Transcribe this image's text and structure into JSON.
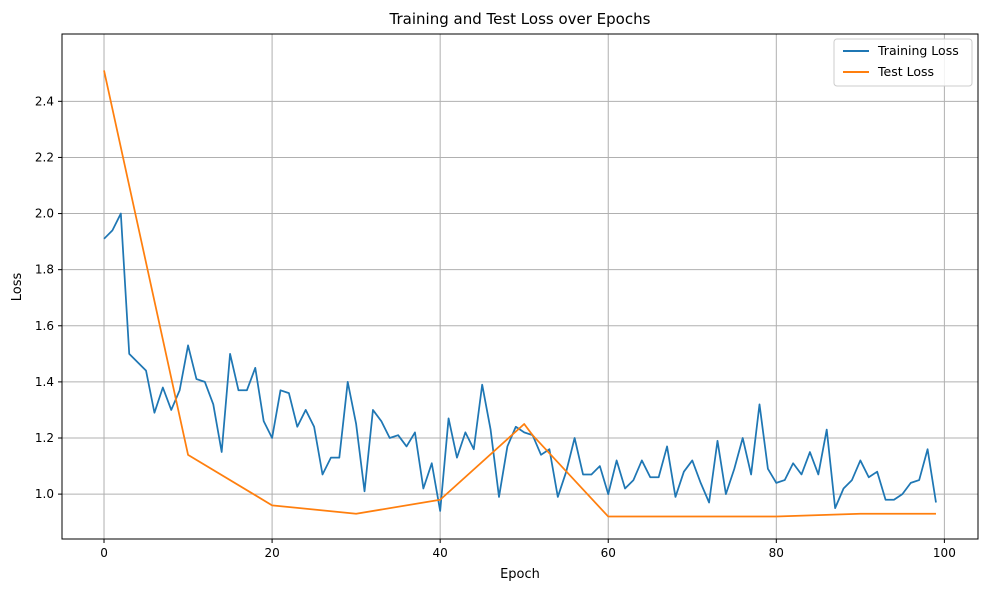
{
  "chart_data": {
    "type": "line",
    "title": "Training and Test Loss over Epochs",
    "xlabel": "Epoch",
    "ylabel": "Loss",
    "xlim": [
      -5,
      104
    ],
    "ylim": [
      0.84,
      2.64
    ],
    "xticks": [
      0,
      20,
      40,
      60,
      80,
      100
    ],
    "yticks": [
      1.0,
      1.2,
      1.4,
      1.6,
      1.8,
      2.0,
      2.2,
      2.4
    ],
    "grid": true,
    "legend": "top-right",
    "series": [
      {
        "name": "Training Loss",
        "color": "#1f77b4",
        "x": [
          0,
          1,
          2,
          3,
          4,
          5,
          6,
          7,
          8,
          9,
          10,
          11,
          12,
          13,
          14,
          15,
          16,
          17,
          18,
          19,
          20,
          21,
          22,
          23,
          24,
          25,
          26,
          27,
          28,
          29,
          30,
          31,
          32,
          33,
          34,
          35,
          36,
          37,
          38,
          39,
          40,
          41,
          42,
          43,
          44,
          45,
          46,
          47,
          48,
          49,
          50,
          51,
          52,
          53,
          54,
          55,
          56,
          57,
          58,
          59,
          60,
          61,
          62,
          63,
          64,
          65,
          66,
          67,
          68,
          69,
          70,
          71,
          72,
          73,
          74,
          75,
          76,
          77,
          78,
          79,
          80,
          81,
          82,
          83,
          84,
          85,
          86,
          87,
          88,
          89,
          90,
          91,
          92,
          93,
          94,
          95,
          96,
          97,
          98,
          99
        ],
        "values": [
          1.91,
          1.94,
          2.0,
          1.5,
          1.47,
          1.44,
          1.29,
          1.38,
          1.3,
          1.37,
          1.53,
          1.41,
          1.4,
          1.32,
          1.15,
          1.5,
          1.37,
          1.37,
          1.45,
          1.26,
          1.2,
          1.37,
          1.36,
          1.24,
          1.3,
          1.24,
          1.07,
          1.13,
          1.13,
          1.4,
          1.25,
          1.01,
          1.3,
          1.26,
          1.2,
          1.21,
          1.17,
          1.22,
          1.02,
          1.11,
          0.94,
          1.27,
          1.13,
          1.22,
          1.16,
          1.39,
          1.23,
          0.99,
          1.17,
          1.24,
          1.22,
          1.21,
          1.14,
          1.16,
          0.99,
          1.08,
          1.2,
          1.07,
          1.07,
          1.1,
          1.0,
          1.12,
          1.02,
          1.05,
          1.12,
          1.06,
          1.06,
          1.17,
          0.99,
          1.08,
          1.12,
          1.04,
          0.97,
          1.19,
          1.0,
          1.09,
          1.2,
          1.07,
          1.32,
          1.09,
          1.04,
          1.05,
          1.11,
          1.07,
          1.15,
          1.07,
          1.23,
          0.95,
          1.02,
          1.05,
          1.12,
          1.06,
          1.08,
          0.98,
          0.98,
          1.0,
          1.04,
          1.05,
          1.16,
          0.97
        ]
      },
      {
        "name": "Test Loss",
        "color": "#ff7f0e",
        "x": [
          0,
          10,
          20,
          30,
          40,
          50,
          51,
          60,
          70,
          80,
          90,
          99
        ],
        "values": [
          2.51,
          1.14,
          0.96,
          0.93,
          0.98,
          1.25,
          1.21,
          0.92,
          0.92,
          0.92,
          0.93,
          0.93
        ]
      }
    ]
  }
}
